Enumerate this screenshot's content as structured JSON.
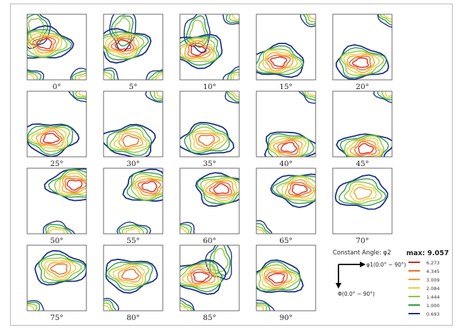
{
  "chart_data": {
    "type": "contour",
    "constant_angle_label": "Constant Angle: φ2",
    "x_axis_label": "φ1(0.0° − 90°)",
    "y_axis_label": "Φ(0.0° − 90°)",
    "max_label": "max: 9.057",
    "levels": [
      {
        "value": "6.273",
        "color": "#d8261b"
      },
      {
        "value": "4.345",
        "color": "#ec6a1f"
      },
      {
        "value": "3.009",
        "color": "#f3a02a"
      },
      {
        "value": "2.084",
        "color": "#e7d13a"
      },
      {
        "value": "1.444",
        "color": "#8cc640"
      },
      {
        "value": "1.000",
        "color": "#2f9a43"
      },
      {
        "value": "0.693",
        "color": "#1d2f8a"
      }
    ],
    "sections": [
      {
        "label": "0°",
        "cx": 0.3,
        "cy": 0.45,
        "depth": 7,
        "ridge": "nw",
        "corners": [
          "sw",
          "se"
        ]
      },
      {
        "label": "5°",
        "cx": 0.33,
        "cy": 0.47,
        "depth": 7,
        "ridge": "n",
        "corners": [
          "sw",
          "se"
        ]
      },
      {
        "label": "10°",
        "cx": 0.3,
        "cy": 0.55,
        "depth": 7,
        "ridge": "n",
        "corners": [
          "ne",
          "se"
        ]
      },
      {
        "label": "15°",
        "cx": 0.38,
        "cy": 0.72,
        "depth": 7,
        "ridge": "",
        "corners": [
          "ne"
        ]
      },
      {
        "label": "20°",
        "cx": 0.48,
        "cy": 0.74,
        "depth": 7,
        "ridge": "",
        "corners": [
          "ne"
        ]
      },
      {
        "label": "25°",
        "cx": 0.4,
        "cy": 0.72,
        "depth": 7,
        "ridge": "",
        "corners": [
          "ne"
        ]
      },
      {
        "label": "30°",
        "cx": 0.45,
        "cy": 0.76,
        "depth": 6,
        "ridge": "",
        "corners": [
          "ne"
        ]
      },
      {
        "label": "35°",
        "cx": 0.45,
        "cy": 0.74,
        "depth": 6,
        "ridge": "",
        "corners": [
          "ne"
        ]
      },
      {
        "label": "40°",
        "cx": 0.55,
        "cy": 0.86,
        "depth": 7,
        "ridge": "",
        "corners": [
          "ne"
        ]
      },
      {
        "label": "45°",
        "cx": 0.55,
        "cy": 0.88,
        "depth": 7,
        "ridge": "",
        "corners": [
          "ne"
        ]
      },
      {
        "label": "50°",
        "cx": 0.8,
        "cy": 0.25,
        "depth": 7,
        "ridge": "",
        "corners": [
          "s"
        ]
      },
      {
        "label": "55°",
        "cx": 0.78,
        "cy": 0.28,
        "depth": 7,
        "ridge": "",
        "corners": [
          "s"
        ]
      },
      {
        "label": "60°",
        "cx": 0.7,
        "cy": 0.32,
        "depth": 7,
        "ridge": "",
        "corners": [
          "sw"
        ]
      },
      {
        "label": "65°",
        "cx": 0.72,
        "cy": 0.32,
        "depth": 7,
        "ridge": "",
        "corners": [
          "sw"
        ]
      },
      {
        "label": "70°",
        "cx": 0.5,
        "cy": 0.38,
        "depth": 5,
        "ridge": "",
        "corners": []
      },
      {
        "label": "75°",
        "cx": 0.55,
        "cy": 0.36,
        "depth": 6,
        "ridge": "",
        "corners": [
          "sw"
        ]
      },
      {
        "label": "80°",
        "cx": 0.45,
        "cy": 0.45,
        "depth": 6,
        "ridge": "",
        "corners": [
          "sw"
        ]
      },
      {
        "label": "85°",
        "cx": 0.35,
        "cy": 0.48,
        "depth": 7,
        "ridge": "ne",
        "corners": [
          "sw"
        ]
      },
      {
        "label": "90°",
        "cx": 0.35,
        "cy": 0.5,
        "depth": 7,
        "ridge": "",
        "corners": [
          "sw"
        ]
      }
    ]
  }
}
